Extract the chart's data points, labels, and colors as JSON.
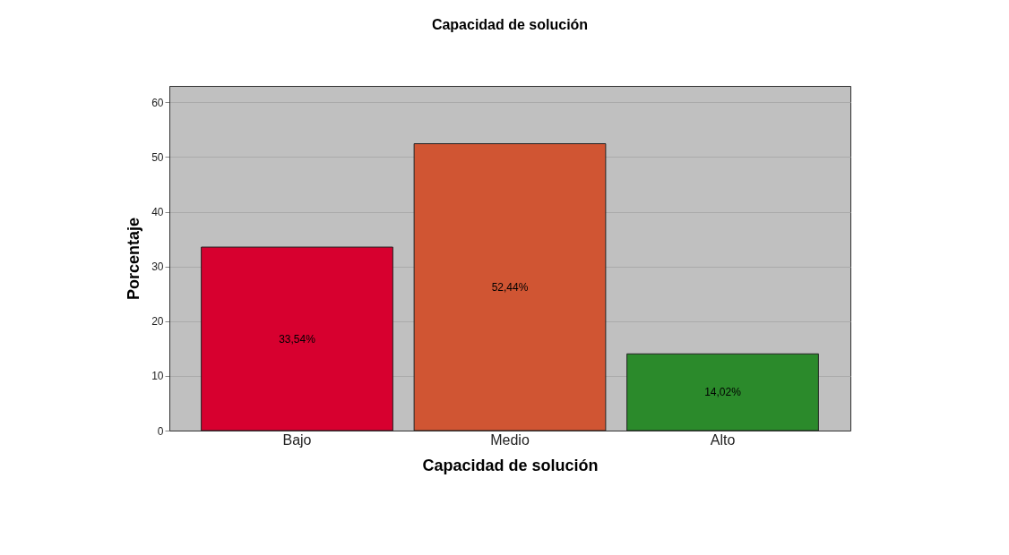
{
  "chart_data": {
    "type": "bar",
    "title": "Capacidad de solución",
    "xlabel": "Capacidad de solución",
    "ylabel": "Porcentaje",
    "categories": [
      "Bajo",
      "Medio",
      "Alto"
    ],
    "values": [
      33.54,
      52.44,
      14.02
    ],
    "colors": [
      "#d7002f",
      "#d05533",
      "#2b8a2b"
    ],
    "value_labels": [
      "33,54%",
      "52,44%",
      "14,02%"
    ],
    "ylim": [
      0,
      63
    ],
    "yticks": [
      0,
      10,
      20,
      30,
      40,
      50,
      60
    ],
    "grid": "y"
  }
}
